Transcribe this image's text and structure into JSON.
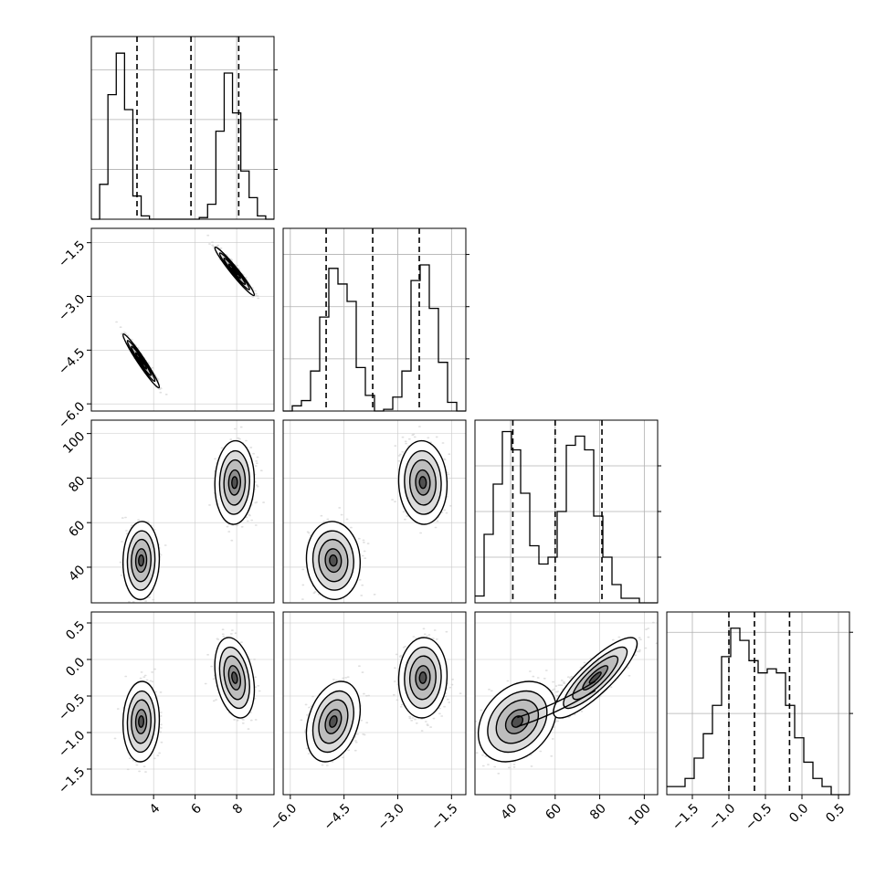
{
  "chart_data": {
    "type": "corner",
    "grid": true,
    "n_params": 4,
    "params": [
      {
        "range": [
          1.0,
          9.8
        ],
        "ticks": [
          4,
          6,
          8
        ],
        "tick_labels": [
          "4",
          "6",
          "8"
        ],
        "quantiles": [
          3.2,
          5.8,
          8.1
        ],
        "modes": [
          {
            "mu": 3.4,
            "sigma": 0.35,
            "w": 0.5
          },
          {
            "mu": 7.9,
            "sigma": 0.38,
            "w": 0.5
          }
        ],
        "hist_bins": [
          1.0,
          9.8,
          22
        ],
        "hist": [
          0,
          0.21,
          0.75,
          1.0,
          0.66,
          0.14,
          0.02,
          0,
          0,
          0,
          0,
          0,
          0,
          0.01,
          0.09,
          0.53,
          0.88,
          0.64,
          0.29,
          0.13,
          0.02,
          0
        ],
        "hist_ylim": [
          0,
          1.1
        ],
        "hist_grid": [
          0.3,
          0.6,
          0.9
        ]
      },
      {
        "range": [
          -6.2,
          -1.1
        ],
        "ticks": [
          -6.0,
          -4.5,
          -3.0,
          -1.5
        ],
        "tick_labels": [
          "−6.0",
          "−4.5",
          "−3.0",
          "−1.5"
        ],
        "quantiles": [
          -5.0,
          -3.7,
          -2.4
        ],
        "modes": [
          {
            "mu": -4.8,
            "sigma": 0.3,
            "w": 0.5
          },
          {
            "mu": -2.3,
            "sigma": 0.27,
            "w": 0.5
          }
        ],
        "hist_bins": [
          -6.2,
          -1.1,
          20
        ],
        "hist": [
          0,
          0.03,
          0.06,
          0.23,
          0.54,
          0.82,
          0.73,
          0.63,
          0.25,
          0.09,
          0,
          0.01,
          0.08,
          0.23,
          0.75,
          0.84,
          0.59,
          0.28,
          0.05,
          0
        ],
        "hist_ylim": [
          0,
          1.05
        ],
        "hist_grid": [
          0.3,
          0.6,
          0.9
        ]
      },
      {
        "range": [
          24,
          106
        ],
        "ticks": [
          40,
          60,
          80,
          100
        ],
        "tick_labels": [
          "40",
          "60",
          "80",
          "100"
        ],
        "quantiles": [
          41,
          60,
          81
        ],
        "modes": [
          {
            "mu": 43,
            "sigma": 7,
            "w": 0.5
          },
          {
            "mu": 78,
            "sigma": 7.5,
            "w": 0.5
          }
        ],
        "hist_bins": [
          24,
          106,
          20
        ],
        "hist": [
          0.03,
          0.3,
          0.52,
          0.75,
          0.67,
          0.48,
          0.25,
          0.17,
          0.2,
          0.4,
          0.69,
          0.73,
          0.67,
          0.38,
          0.2,
          0.08,
          0.02,
          0.02,
          0,
          0
        ],
        "hist_ylim": [
          0,
          0.8
        ],
        "hist_grid": [
          0.2,
          0.4,
          0.6
        ]
      },
      {
        "range": [
          -1.85,
          0.65
        ],
        "ticks": [
          -1.5,
          -1.0,
          -0.5,
          0.0,
          0.5
        ],
        "tick_labels": [
          "−1.5",
          "−1.0",
          "−0.5",
          "0.0",
          "0.5"
        ],
        "quantiles": [
          -1.0,
          -0.65,
          -0.17
        ],
        "modes": [
          {
            "mu": -0.85,
            "sigma": 0.22,
            "w": 0.5
          },
          {
            "mu": -0.25,
            "sigma": 0.22,
            "w": 0.5
          }
        ],
        "hist_bins": [
          -1.85,
          0.65,
          20
        ],
        "hist": [
          0.02,
          0.02,
          0.04,
          0.09,
          0.15,
          0.22,
          0.34,
          0.41,
          0.38,
          0.33,
          0.3,
          0.31,
          0.3,
          0.22,
          0.14,
          0.08,
          0.04,
          0.02,
          0,
          0
        ],
        "hist_ylim": [
          0,
          0.45
        ],
        "hist_grid": [
          0.2,
          0.4
        ]
      }
    ],
    "correlations": {
      "1-0": [
        -0.97,
        -0.97
      ],
      "2-0": [
        0.05,
        0.05
      ],
      "2-1": [
        -0.05,
        -0.05
      ],
      "3-0": [
        0.05,
        -0.3
      ],
      "3-1": [
        0.3,
        0.05
      ],
      "3-2": [
        0.3,
        0.85
      ]
    },
    "bridges": {
      "3-2": [
        [
          43,
          -0.82
        ],
        [
          60,
          -0.68
        ],
        [
          78,
          -0.25
        ]
      ]
    }
  }
}
